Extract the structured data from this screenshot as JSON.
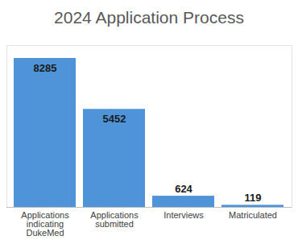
{
  "chart_data": {
    "type": "bar",
    "title": "2024 Application Process",
    "categories": [
      "Applications indicating DukeMed",
      "Applications submitted",
      "Interviews",
      "Matriculated"
    ],
    "values": [
      8285,
      5452,
      624,
      119
    ],
    "color": "#4f94d9",
    "ylim": [
      0,
      9000
    ],
    "yticks": [],
    "grid": false,
    "data_labels": true,
    "tick_labels": "x"
  }
}
